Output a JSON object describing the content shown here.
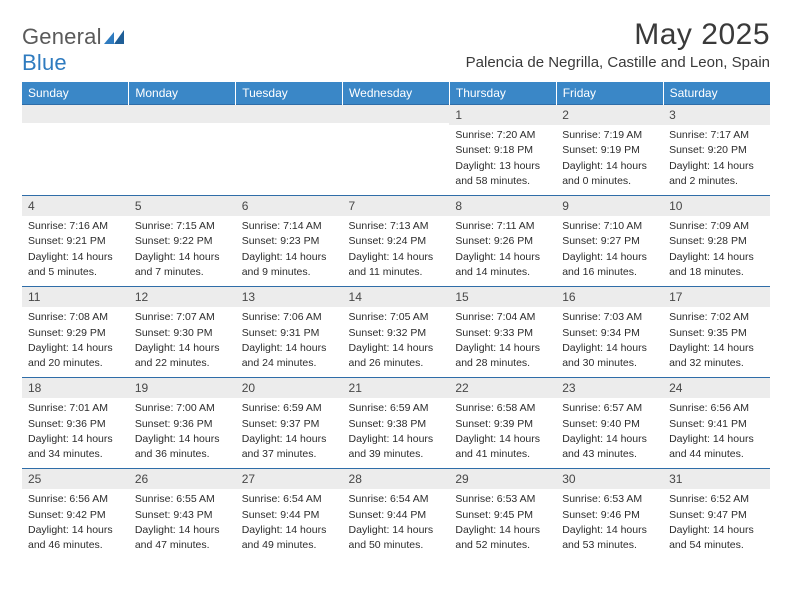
{
  "logo": {
    "word1": "General",
    "word2": "Blue"
  },
  "title": "May 2025",
  "location": "Palencia de Negrilla, Castille and Leon, Spain",
  "dow": [
    "Sunday",
    "Monday",
    "Tuesday",
    "Wednesday",
    "Thursday",
    "Friday",
    "Saturday"
  ],
  "colors": {
    "header_bg": "#3a87c7",
    "rule": "#2f6da8",
    "daynum_bg": "#ececec",
    "text": "#2c2c2c"
  },
  "layout": {
    "first_weekday": 4,
    "days_in_month": 31,
    "rows": 5,
    "cols": 7
  },
  "days": [
    {
      "n": 1,
      "sunrise": "7:20 AM",
      "sunset": "9:18 PM",
      "daylight": "13 hours and 58 minutes."
    },
    {
      "n": 2,
      "sunrise": "7:19 AM",
      "sunset": "9:19 PM",
      "daylight": "14 hours and 0 minutes."
    },
    {
      "n": 3,
      "sunrise": "7:17 AM",
      "sunset": "9:20 PM",
      "daylight": "14 hours and 2 minutes."
    },
    {
      "n": 4,
      "sunrise": "7:16 AM",
      "sunset": "9:21 PM",
      "daylight": "14 hours and 5 minutes."
    },
    {
      "n": 5,
      "sunrise": "7:15 AM",
      "sunset": "9:22 PM",
      "daylight": "14 hours and 7 minutes."
    },
    {
      "n": 6,
      "sunrise": "7:14 AM",
      "sunset": "9:23 PM",
      "daylight": "14 hours and 9 minutes."
    },
    {
      "n": 7,
      "sunrise": "7:13 AM",
      "sunset": "9:24 PM",
      "daylight": "14 hours and 11 minutes."
    },
    {
      "n": 8,
      "sunrise": "7:11 AM",
      "sunset": "9:26 PM",
      "daylight": "14 hours and 14 minutes."
    },
    {
      "n": 9,
      "sunrise": "7:10 AM",
      "sunset": "9:27 PM",
      "daylight": "14 hours and 16 minutes."
    },
    {
      "n": 10,
      "sunrise": "7:09 AM",
      "sunset": "9:28 PM",
      "daylight": "14 hours and 18 minutes."
    },
    {
      "n": 11,
      "sunrise": "7:08 AM",
      "sunset": "9:29 PM",
      "daylight": "14 hours and 20 minutes."
    },
    {
      "n": 12,
      "sunrise": "7:07 AM",
      "sunset": "9:30 PM",
      "daylight": "14 hours and 22 minutes."
    },
    {
      "n": 13,
      "sunrise": "7:06 AM",
      "sunset": "9:31 PM",
      "daylight": "14 hours and 24 minutes."
    },
    {
      "n": 14,
      "sunrise": "7:05 AM",
      "sunset": "9:32 PM",
      "daylight": "14 hours and 26 minutes."
    },
    {
      "n": 15,
      "sunrise": "7:04 AM",
      "sunset": "9:33 PM",
      "daylight": "14 hours and 28 minutes."
    },
    {
      "n": 16,
      "sunrise": "7:03 AM",
      "sunset": "9:34 PM",
      "daylight": "14 hours and 30 minutes."
    },
    {
      "n": 17,
      "sunrise": "7:02 AM",
      "sunset": "9:35 PM",
      "daylight": "14 hours and 32 minutes."
    },
    {
      "n": 18,
      "sunrise": "7:01 AM",
      "sunset": "9:36 PM",
      "daylight": "14 hours and 34 minutes."
    },
    {
      "n": 19,
      "sunrise": "7:00 AM",
      "sunset": "9:36 PM",
      "daylight": "14 hours and 36 minutes."
    },
    {
      "n": 20,
      "sunrise": "6:59 AM",
      "sunset": "9:37 PM",
      "daylight": "14 hours and 37 minutes."
    },
    {
      "n": 21,
      "sunrise": "6:59 AM",
      "sunset": "9:38 PM",
      "daylight": "14 hours and 39 minutes."
    },
    {
      "n": 22,
      "sunrise": "6:58 AM",
      "sunset": "9:39 PM",
      "daylight": "14 hours and 41 minutes."
    },
    {
      "n": 23,
      "sunrise": "6:57 AM",
      "sunset": "9:40 PM",
      "daylight": "14 hours and 43 minutes."
    },
    {
      "n": 24,
      "sunrise": "6:56 AM",
      "sunset": "9:41 PM",
      "daylight": "14 hours and 44 minutes."
    },
    {
      "n": 25,
      "sunrise": "6:56 AM",
      "sunset": "9:42 PM",
      "daylight": "14 hours and 46 minutes."
    },
    {
      "n": 26,
      "sunrise": "6:55 AM",
      "sunset": "9:43 PM",
      "daylight": "14 hours and 47 minutes."
    },
    {
      "n": 27,
      "sunrise": "6:54 AM",
      "sunset": "9:44 PM",
      "daylight": "14 hours and 49 minutes."
    },
    {
      "n": 28,
      "sunrise": "6:54 AM",
      "sunset": "9:44 PM",
      "daylight": "14 hours and 50 minutes."
    },
    {
      "n": 29,
      "sunrise": "6:53 AM",
      "sunset": "9:45 PM",
      "daylight": "14 hours and 52 minutes."
    },
    {
      "n": 30,
      "sunrise": "6:53 AM",
      "sunset": "9:46 PM",
      "daylight": "14 hours and 53 minutes."
    },
    {
      "n": 31,
      "sunrise": "6:52 AM",
      "sunset": "9:47 PM",
      "daylight": "14 hours and 54 minutes."
    }
  ],
  "labels": {
    "sunrise": "Sunrise:",
    "sunset": "Sunset:",
    "daylight": "Daylight:"
  }
}
